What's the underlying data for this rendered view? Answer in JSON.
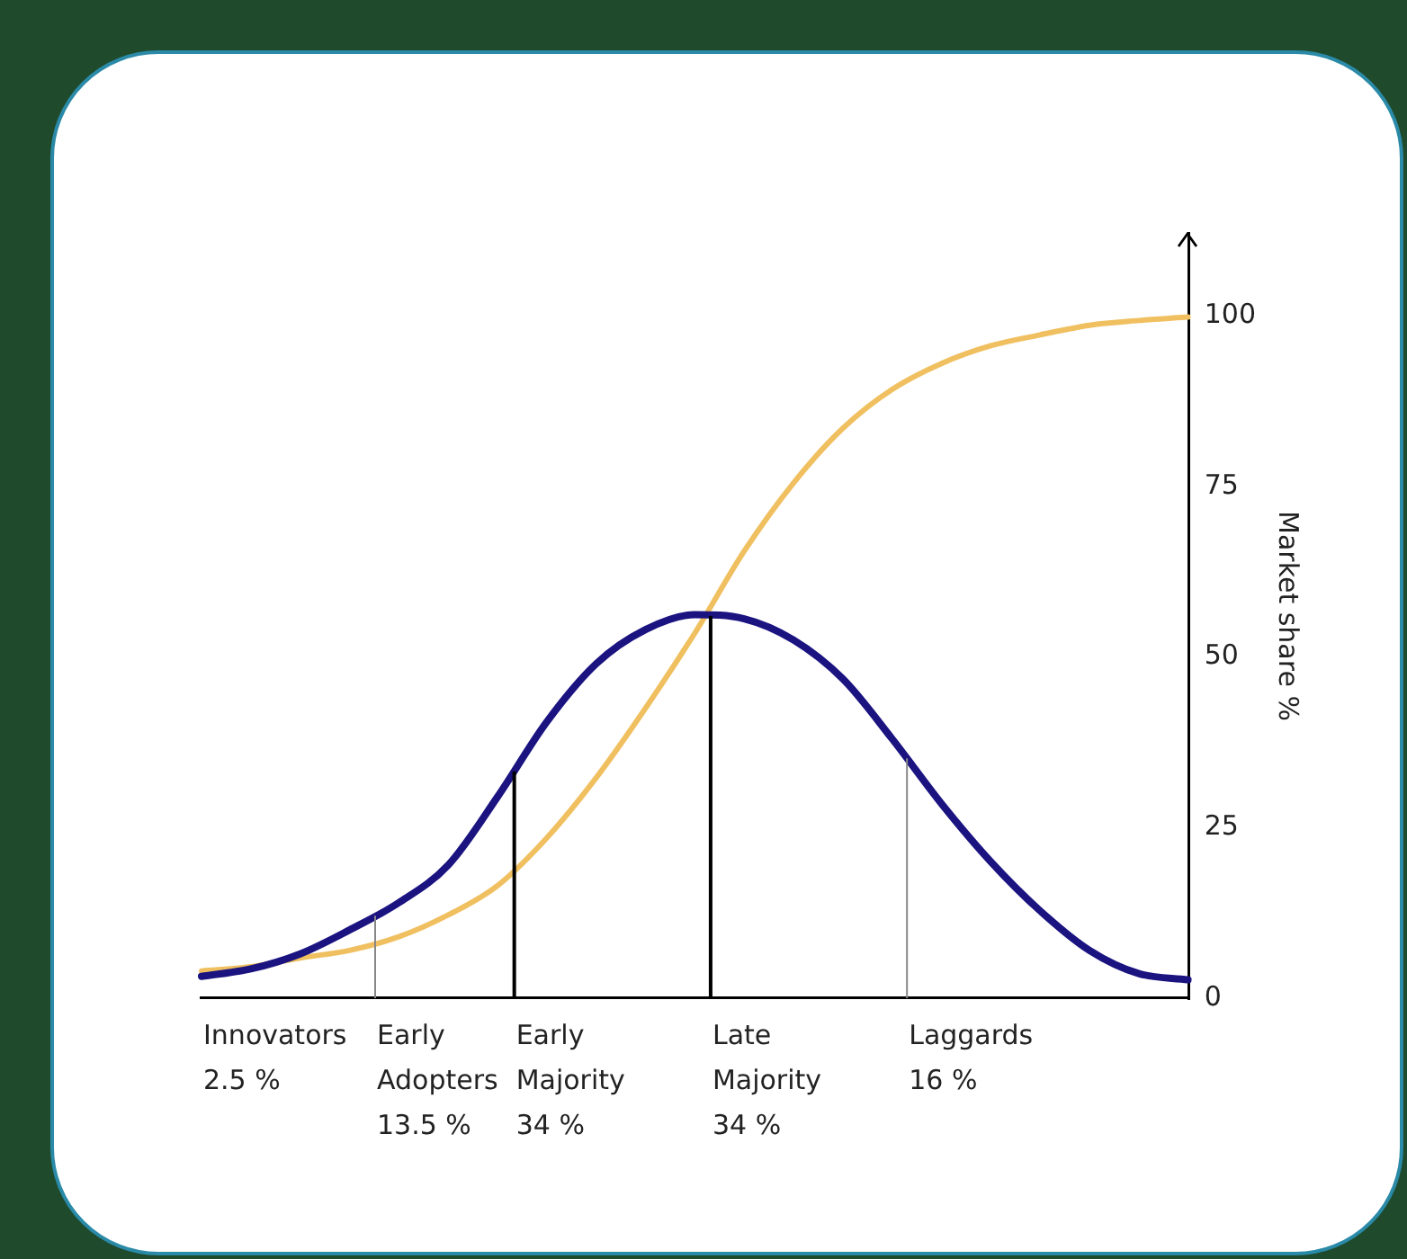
{
  "chart_data": {
    "type": "line",
    "ylabel": "Market share %",
    "categories": [
      null,
      null,
      null,
      null,
      null,
      null,
      null,
      null,
      null,
      null,
      null,
      null,
      null,
      null,
      null,
      null,
      null,
      null,
      null,
      null,
      null
    ],
    "ylim": [
      0,
      112
    ],
    "yticks": [
      0,
      25,
      50,
      75,
      100
    ],
    "tick_labels": "y",
    "grid": false,
    "legend": false,
    "marker": "none",
    "line_style": "solid",
    "series": [
      {
        "color": "#1a1380",
        "values": [
          3.2,
          4.3,
          6.5,
          10,
          14,
          19.5,
          29.5,
          40.5,
          49,
          54,
          56.2,
          55.6,
          52.5,
          46.8,
          38,
          28.5,
          20,
          12.8,
          7,
          3.6,
          2.7
        ]
      },
      {
        "color": "#f0c060",
        "values": [
          4,
          4.6,
          5.9,
          7,
          9,
          12.2,
          16.5,
          23.5,
          32.3,
          42.5,
          53.5,
          65.5,
          75.5,
          83.5,
          89.2,
          93,
          95.6,
          97.2,
          98.6,
          99.3,
          99.8
        ]
      }
    ],
    "annotations": [
      "Innovators\n2.5 %",
      "Early\nAdopters\n13.5 %",
      "Early\nMajority\n34 %",
      "Late\nMajority\n34 %",
      "Laggards\n16 %"
    ]
  }
}
